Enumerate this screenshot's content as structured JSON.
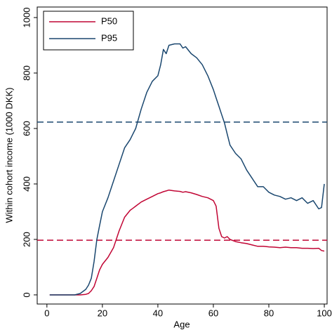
{
  "chart_data": {
    "type": "line",
    "x_label": "Age",
    "y_label": "Within cohort income (1000 DKK)",
    "x": [
      1,
      4,
      7,
      10,
      12,
      14,
      15,
      16,
      17,
      18,
      19,
      20,
      22,
      24,
      26,
      28,
      30,
      31,
      32,
      34,
      36,
      38,
      40,
      41,
      42,
      43,
      44,
      46,
      48,
      49,
      50,
      52,
      54,
      56,
      58,
      60,
      61,
      62,
      63,
      64,
      65,
      66,
      68,
      70,
      72,
      74,
      76,
      78,
      80,
      82,
      84,
      86,
      88,
      90,
      92,
      94,
      96,
      98,
      99,
      100
    ],
    "series": [
      {
        "name": "P50",
        "color": "#c10534",
        "values": [
          0,
          0,
          0,
          0,
          0,
          2,
          5,
          15,
          30,
          60,
          90,
          110,
          135,
          170,
          230,
          280,
          305,
          312,
          320,
          335,
          345,
          355,
          365,
          368,
          372,
          375,
          378,
          375,
          373,
          370,
          372,
          368,
          362,
          355,
          350,
          340,
          320,
          240,
          210,
          205,
          210,
          200,
          192,
          188,
          185,
          180,
          175,
          175,
          173,
          172,
          170,
          172,
          170,
          170,
          168,
          168,
          167,
          168,
          160,
          158
        ]
      },
      {
        "name": "P95",
        "color": "#1a476f",
        "values": [
          0,
          0,
          0,
          0,
          5,
          20,
          35,
          60,
          120,
          200,
          250,
          300,
          350,
          410,
          470,
          530,
          560,
          580,
          600,
          670,
          730,
          770,
          790,
          830,
          885,
          870,
          900,
          905,
          905,
          890,
          895,
          870,
          855,
          830,
          790,
          740,
          710,
          680,
          650,
          620,
          580,
          540,
          510,
          490,
          450,
          420,
          390,
          390,
          370,
          360,
          355,
          345,
          350,
          340,
          350,
          330,
          340,
          310,
          315,
          400
        ]
      }
    ],
    "hlines": [
      {
        "value": 623,
        "color": "#1a476f"
      },
      {
        "value": 197,
        "color": "#c10534"
      }
    ],
    "xlim": [
      -3.5,
      101
    ],
    "ylim": [
      -33,
      1038
    ],
    "xticks": [
      0,
      20,
      40,
      60,
      80,
      100
    ],
    "yticks": [
      0,
      200,
      400,
      600,
      800,
      1000
    ],
    "legend": "top-left"
  }
}
